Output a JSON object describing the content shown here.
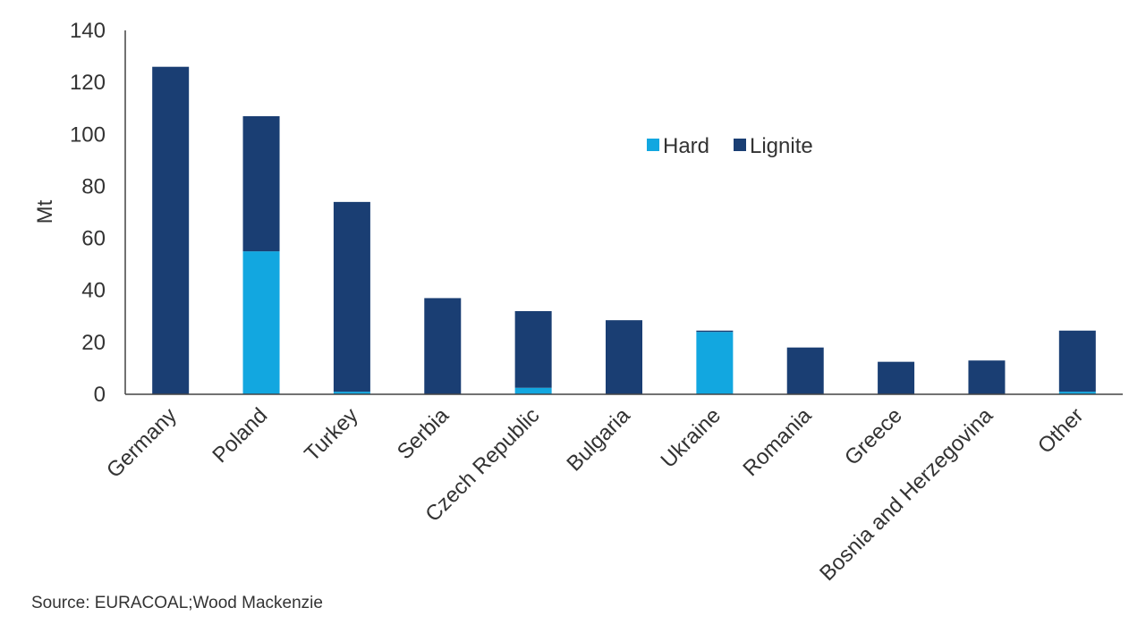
{
  "chart_data": {
    "type": "bar",
    "stacked": true,
    "categories": [
      "Germany",
      "Poland",
      "Turkey",
      "Serbia",
      "Czech Republic",
      "Bulgaria",
      "Ukraine",
      "Romania",
      "Greece",
      "Bosnia and Herzegovina",
      "Other"
    ],
    "series": [
      {
        "name": "Hard",
        "color": "#12a7e0",
        "values": [
          0,
          55,
          1,
          0,
          2.5,
          0,
          24,
          0,
          0,
          0,
          1
        ]
      },
      {
        "name": "Lignite",
        "color": "#1a3e73",
        "values": [
          126,
          52,
          73,
          37,
          29.5,
          28.5,
          0.5,
          18,
          12.5,
          13,
          23.5
        ]
      }
    ],
    "ylabel": "Mt",
    "ylim": [
      0,
      140
    ],
    "yticks": [
      0,
      20,
      40,
      60,
      80,
      100,
      120,
      140
    ],
    "legend_position": "top-right",
    "grid": false
  },
  "source": "Source: EURACOAL;Wood Mackenzie"
}
